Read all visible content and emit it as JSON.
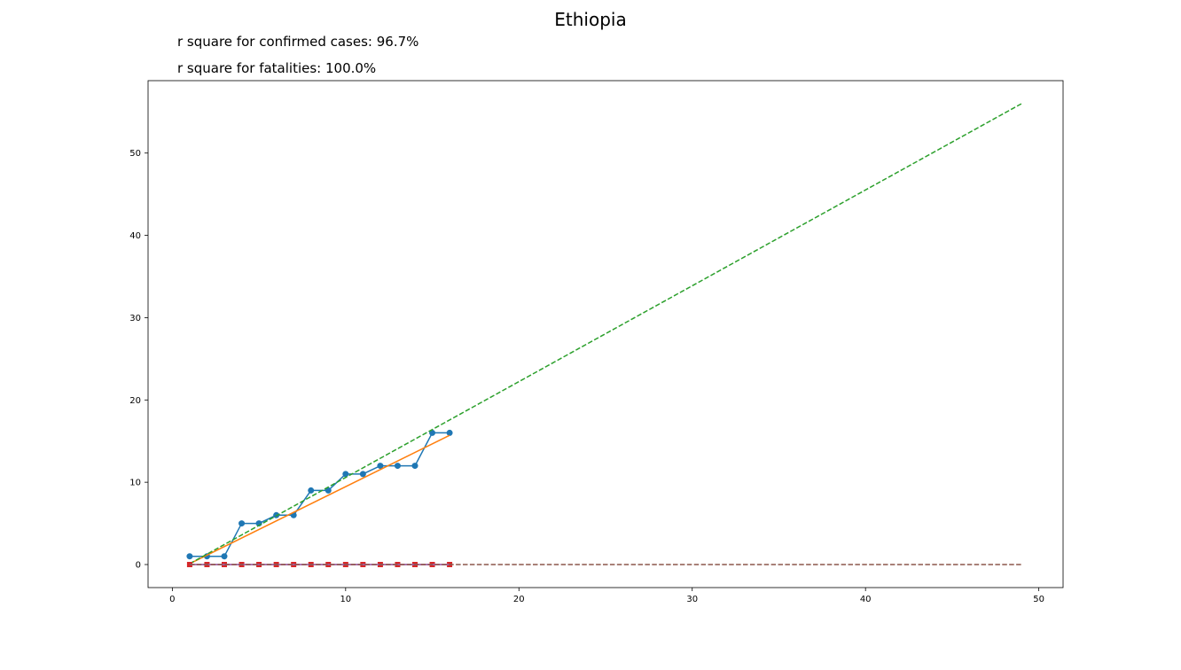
{
  "chart_data": {
    "type": "line",
    "title": "Ethiopia",
    "annotations": [
      "r square for confirmed cases: 96.7%",
      "r square for fatalities: 100.0%"
    ],
    "xlabel": "",
    "ylabel": "",
    "xlim": [
      -1.4,
      51.4
    ],
    "ylim": [
      -2.8,
      58.8
    ],
    "xticks": [
      0,
      10,
      20,
      30,
      40,
      50
    ],
    "yticks": [
      0,
      10,
      20,
      30,
      40,
      50
    ],
    "grid": false,
    "legend": false,
    "series": [
      {
        "kind": "observed-confirmed",
        "color": "#1f77b4",
        "style": "solid",
        "marker": "circle",
        "x": [
          1,
          2,
          3,
          4,
          5,
          6,
          7,
          8,
          9,
          10,
          11,
          12,
          13,
          14,
          15,
          16
        ],
        "y": [
          1,
          1,
          1,
          5,
          5,
          6,
          6,
          9,
          9,
          11,
          11,
          12,
          12,
          12,
          16,
          16
        ]
      },
      {
        "kind": "fit-confirmed",
        "color": "#ff7f0e",
        "style": "solid",
        "marker": "none",
        "x": [
          1,
          16
        ],
        "y": [
          0.1,
          15.7
        ]
      },
      {
        "kind": "projection-confirmed",
        "color": "#2ca02c",
        "style": "dashed",
        "marker": "none",
        "x": [
          1,
          49
        ],
        "y": [
          0.1,
          56.0
        ]
      },
      {
        "kind": "observed-fatalities",
        "color": "#d62728",
        "style": "solid",
        "marker": "square",
        "x": [
          1,
          2,
          3,
          4,
          5,
          6,
          7,
          8,
          9,
          10,
          11,
          12,
          13,
          14,
          15,
          16
        ],
        "y": [
          0,
          0,
          0,
          0,
          0,
          0,
          0,
          0,
          0,
          0,
          0,
          0,
          0,
          0,
          0,
          0
        ]
      },
      {
        "kind": "fit-fatalities",
        "color": "#9467bd",
        "style": "solid",
        "marker": "none",
        "x": [
          1,
          16
        ],
        "y": [
          0,
          0
        ]
      },
      {
        "kind": "projection-fatalities",
        "color": "#8c564b",
        "style": "dashed",
        "marker": "none",
        "x": [
          1,
          49
        ],
        "y": [
          0,
          0
        ]
      }
    ]
  }
}
